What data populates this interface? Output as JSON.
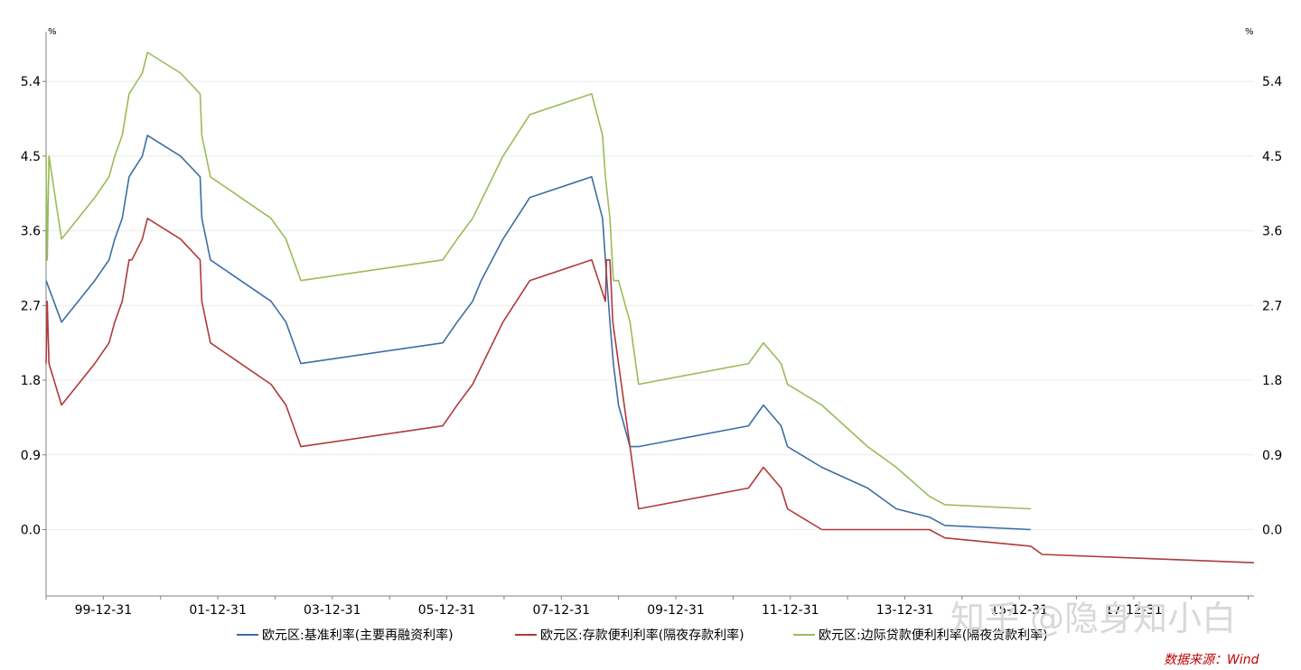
{
  "chart_data": {
    "type": "line",
    "title": "",
    "y_unit_left": "%",
    "y_unit_right": "%",
    "ylim": [
      -0.8,
      6.0
    ],
    "yticks": [
      0.0,
      0.9,
      1.8,
      2.7,
      3.6,
      4.5,
      5.4
    ],
    "ytick_labels": [
      "0.0",
      "0.9",
      "1.8",
      "2.7",
      "3.6",
      "4.5",
      "5.4"
    ],
    "xlim": [
      1999.0,
      2020.1
    ],
    "xticks": [
      2000.0,
      2002.0,
      2004.0,
      2006.0,
      2008.0,
      2010.0,
      2012.0,
      2014.0,
      2016.0,
      2018.0
    ],
    "xtick_labels": [
      "99-12-31",
      "01-12-31",
      "03-12-31",
      "05-12-31",
      "07-12-31",
      "09-12-31",
      "11-12-31",
      "13-12-31",
      "15-12-31",
      "17-12-31"
    ],
    "series": [
      {
        "name": "欧元区:基准利率(主要再融资利率)",
        "color": "#3c6ea5",
        "x": [
          1999.0,
          1999.27,
          1999.85,
          2000.1,
          2000.2,
          2000.33,
          2000.45,
          2000.68,
          2000.77,
          2001.35,
          2001.69,
          2001.72,
          2001.87,
          2002.93,
          2003.19,
          2003.45,
          2005.93,
          2006.18,
          2006.45,
          2006.6,
          2006.98,
          2007.45,
          2008.53,
          2008.72,
          2008.77,
          2008.85,
          2008.91,
          2009.0,
          2009.2,
          2009.35,
          2011.27,
          2011.53,
          2011.84,
          2011.95,
          2012.55,
          2013.35,
          2013.85,
          2014.43,
          2014.7,
          2016.2
        ],
        "values": [
          3.0,
          2.5,
          3.0,
          3.25,
          3.5,
          3.75,
          4.25,
          4.5,
          4.75,
          4.5,
          4.25,
          3.75,
          3.25,
          2.75,
          2.5,
          2.0,
          2.25,
          2.5,
          2.75,
          3.0,
          3.5,
          4.0,
          4.25,
          3.75,
          3.25,
          2.5,
          2.0,
          1.5,
          1.0,
          1.0,
          1.25,
          1.5,
          1.25,
          1.0,
          0.75,
          0.5,
          0.25,
          0.15,
          0.05,
          0.0
        ]
      },
      {
        "name": "欧元区:存款便利利率(隔夜存款利率)",
        "color": "#b03a3a",
        "x": [
          1999.0,
          1999.02,
          1999.05,
          1999.27,
          1999.85,
          2000.1,
          2000.2,
          2000.33,
          2000.45,
          2000.5,
          2000.68,
          2000.77,
          2001.35,
          2001.69,
          2001.72,
          2001.87,
          2002.93,
          2003.19,
          2003.45,
          2005.93,
          2006.18,
          2006.45,
          2006.98,
          2007.45,
          2008.53,
          2008.77,
          2008.79,
          2008.85,
          2008.9,
          2009.0,
          2009.2,
          2009.35,
          2011.27,
          2011.53,
          2011.84,
          2011.95,
          2012.55,
          2014.43,
          2014.7,
          2016.2,
          2016.4,
          2020.1
        ],
        "values": [
          2.0,
          2.75,
          2.0,
          1.5,
          2.0,
          2.25,
          2.5,
          2.75,
          3.25,
          3.25,
          3.5,
          3.75,
          3.5,
          3.25,
          2.75,
          2.25,
          1.75,
          1.5,
          1.0,
          1.25,
          1.5,
          1.75,
          2.5,
          3.0,
          3.25,
          2.75,
          3.25,
          3.25,
          2.5,
          2.0,
          1.0,
          0.25,
          0.5,
          0.75,
          0.5,
          0.25,
          0.0,
          0.0,
          -0.1,
          -0.2,
          -0.3,
          -0.4
        ]
      },
      {
        "name": "欧元区:边际贷款便利利率(隔夜贷款利率)",
        "color": "#9bbb59",
        "x": [
          1999.0,
          1999.02,
          1999.05,
          1999.27,
          1999.85,
          2000.1,
          2000.2,
          2000.33,
          2000.45,
          2000.68,
          2000.77,
          2001.35,
          2001.69,
          2001.72,
          2001.87,
          2002.93,
          2003.19,
          2003.45,
          2005.93,
          2006.18,
          2006.45,
          2006.98,
          2007.45,
          2008.53,
          2008.72,
          2008.77,
          2008.85,
          2008.91,
          2009.0,
          2009.2,
          2009.35,
          2011.27,
          2011.53,
          2011.84,
          2011.95,
          2012.55,
          2013.35,
          2013.85,
          2014.43,
          2014.7,
          2016.2
        ],
        "values": [
          4.5,
          3.25,
          4.5,
          3.5,
          4.0,
          4.25,
          4.5,
          4.75,
          5.25,
          5.5,
          5.75,
          5.5,
          5.25,
          4.75,
          4.25,
          3.75,
          3.5,
          3.0,
          3.25,
          3.5,
          3.75,
          4.5,
          5.0,
          5.25,
          4.75,
          4.25,
          3.75,
          3.0,
          3.0,
          2.5,
          1.75,
          2.0,
          2.25,
          2.0,
          1.75,
          1.5,
          1.0,
          0.75,
          0.4,
          0.3,
          0.25
        ]
      }
    ],
    "legend_position": "bottom"
  },
  "source_text": "数据来源：Wind",
  "watermark_text": "知乎 @隐身知小白"
}
